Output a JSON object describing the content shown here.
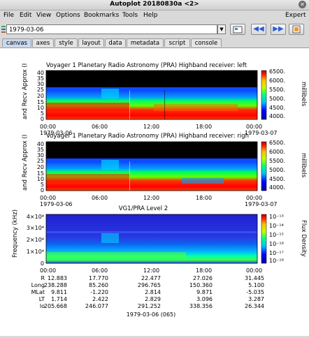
{
  "window": {
    "title": "Autoplot 20180830a <2>"
  },
  "menu": [
    "File",
    "Edit",
    "View",
    "Options",
    "Bookmarks",
    "Tools",
    "Help"
  ],
  "menu_right": "Expert",
  "toolbar": {
    "uri": "1979-03-06"
  },
  "tabs": [
    "canvas",
    "axes",
    "style",
    "layout",
    "data",
    "metadata",
    "script",
    "console"
  ],
  "active_tab": "canvas",
  "colors": {
    "tab_active": "#c8d8ee",
    "accent": "#2a5bd7"
  },
  "panels": [
    {
      "title": "Voyager 1 Planetary Radio Astronomy (PRA) Highband receiver: left",
      "ylabel": "and Recv Approx (I",
      "yticks": [
        "0",
        "5",
        "10",
        "15",
        "20",
        "25",
        "30",
        "35",
        "40"
      ],
      "cbar_label": "millibels",
      "cbar_ticks": [
        "6500.",
        "6000.",
        "5500.",
        "5000.",
        "4500.",
        "4000."
      ],
      "xticks": [
        "00:00",
        "06:00",
        "12:00",
        "18:00",
        "00:00"
      ],
      "xsub_left": "1979-03-06",
      "xsub_right": "1979-03-07"
    },
    {
      "title": "Voyager 1 Planetary Radio Astronomy (PRA) Highband receiver: righ",
      "ylabel": "and Recv Approx (I",
      "yticks": [
        "0",
        "5",
        "10",
        "15",
        "20",
        "25",
        "30",
        "35",
        "40"
      ],
      "cbar_label": "millibels",
      "cbar_ticks": [
        "6500.",
        "6000.",
        "5500.",
        "5000.",
        "4500.",
        "4000."
      ],
      "xticks": [
        "00:00",
        "06:00",
        "12:00",
        "18:00",
        "00:00"
      ],
      "xsub_left": "1979-03-06",
      "xsub_right": "1979-03-07"
    },
    {
      "title": "VG1/PRA Level 2",
      "ylabel": "Frequency (kHz)",
      "yticks": [
        "0",
        "1×10⁴",
        "2×10⁴",
        "3×10⁴",
        "4×10⁴"
      ],
      "cbar_label": "Flux Density",
      "cbar_ticks": [
        "10⁻¹³",
        "10⁻¹⁴",
        "10⁻¹⁵",
        "10⁻¹⁶",
        "10⁻¹⁷",
        "10⁻¹⁸"
      ],
      "xticks": [
        "00:00",
        "06:00",
        "12:00",
        "18:00",
        "00:00"
      ]
    }
  ],
  "ephemeris": {
    "labels": [
      "R",
      "Long",
      "MLat",
      "LT",
      "lo"
    ],
    "columns": [
      [
        "12.883",
        "238.288",
        "9.811",
        "1.714",
        "205.668"
      ],
      [
        "17.770",
        "85.260",
        "-1.220",
        "2.422",
        "246.077"
      ],
      [
        "22.477",
        "296.765",
        "2.814",
        "2.829",
        "291.252"
      ],
      [
        "27.026",
        "150.360",
        "9.871",
        "3.096",
        "338.356"
      ],
      [
        "31.445",
        "5.100",
        "-5.035",
        "3.287",
        "26.344"
      ]
    ],
    "date": "1979-03-06 (065)"
  }
}
